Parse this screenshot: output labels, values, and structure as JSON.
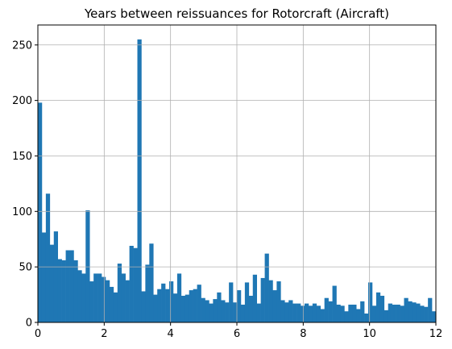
{
  "chart_data": {
    "type": "bar",
    "title": "Years between reissuances for Rotorcraft (Aircraft)",
    "xlabel": "",
    "ylabel": "",
    "xlim": [
      0,
      12
    ],
    "ylim": [
      0,
      268
    ],
    "x_ticks": [
      0,
      2,
      4,
      6,
      8,
      10,
      12
    ],
    "y_ticks": [
      0,
      50,
      100,
      150,
      200,
      250
    ],
    "grid": true,
    "bar_color": "#1f77b4",
    "grid_color": "#b0b0b0",
    "bin_width": 0.12,
    "bin_starts": [
      0.0,
      0.12,
      0.24,
      0.36,
      0.48,
      0.6,
      0.72,
      0.84,
      0.96,
      1.08,
      1.2,
      1.32,
      1.44,
      1.56,
      1.68,
      1.8,
      1.92,
      2.04,
      2.16,
      2.28,
      2.4,
      2.52,
      2.64,
      2.76,
      2.88,
      3.0,
      3.12,
      3.24,
      3.36,
      3.48,
      3.6,
      3.72,
      3.84,
      3.96,
      4.08,
      4.2,
      4.32,
      4.44,
      4.56,
      4.68,
      4.8,
      4.92,
      5.04,
      5.16,
      5.28,
      5.4,
      5.52,
      5.64,
      5.76,
      5.88,
      6.0,
      6.12,
      6.24,
      6.36,
      6.48,
      6.6,
      6.72,
      6.84,
      6.96,
      7.08,
      7.2,
      7.32,
      7.44,
      7.56,
      7.68,
      7.8,
      7.92,
      8.04,
      8.16,
      8.28,
      8.4,
      8.52,
      8.64,
      8.76,
      8.88,
      9.0,
      9.12,
      9.24,
      9.36,
      9.48,
      9.6,
      9.72,
      9.84,
      9.96,
      10.08,
      10.2,
      10.32,
      10.44,
      10.56,
      10.68,
      10.8,
      10.92,
      11.04,
      11.16,
      11.28,
      11.4,
      11.52,
      11.64,
      11.76,
      11.88
    ],
    "values": [
      198,
      81,
      116,
      70,
      82,
      57,
      56,
      65,
      65,
      56,
      47,
      44,
      101,
      37,
      44,
      44,
      41,
      38,
      32,
      27,
      53,
      44,
      38,
      69,
      67,
      255,
      28,
      52,
      71,
      25,
      30,
      35,
      30,
      37,
      26,
      44,
      24,
      25,
      29,
      30,
      34,
      22,
      20,
      17,
      21,
      27,
      20,
      18,
      36,
      18,
      29,
      16,
      36,
      24,
      43,
      17,
      40,
      62,
      38,
      29,
      37,
      20,
      18,
      20,
      17,
      17,
      15,
      17,
      15,
      17,
      15,
      12,
      22,
      19,
      33,
      16,
      15,
      10,
      16,
      16,
      12,
      19,
      8,
      36,
      15,
      27,
      24,
      11,
      17,
      16,
      16,
      15,
      22,
      19,
      18,
      17,
      15,
      14,
      22,
      10
    ]
  }
}
